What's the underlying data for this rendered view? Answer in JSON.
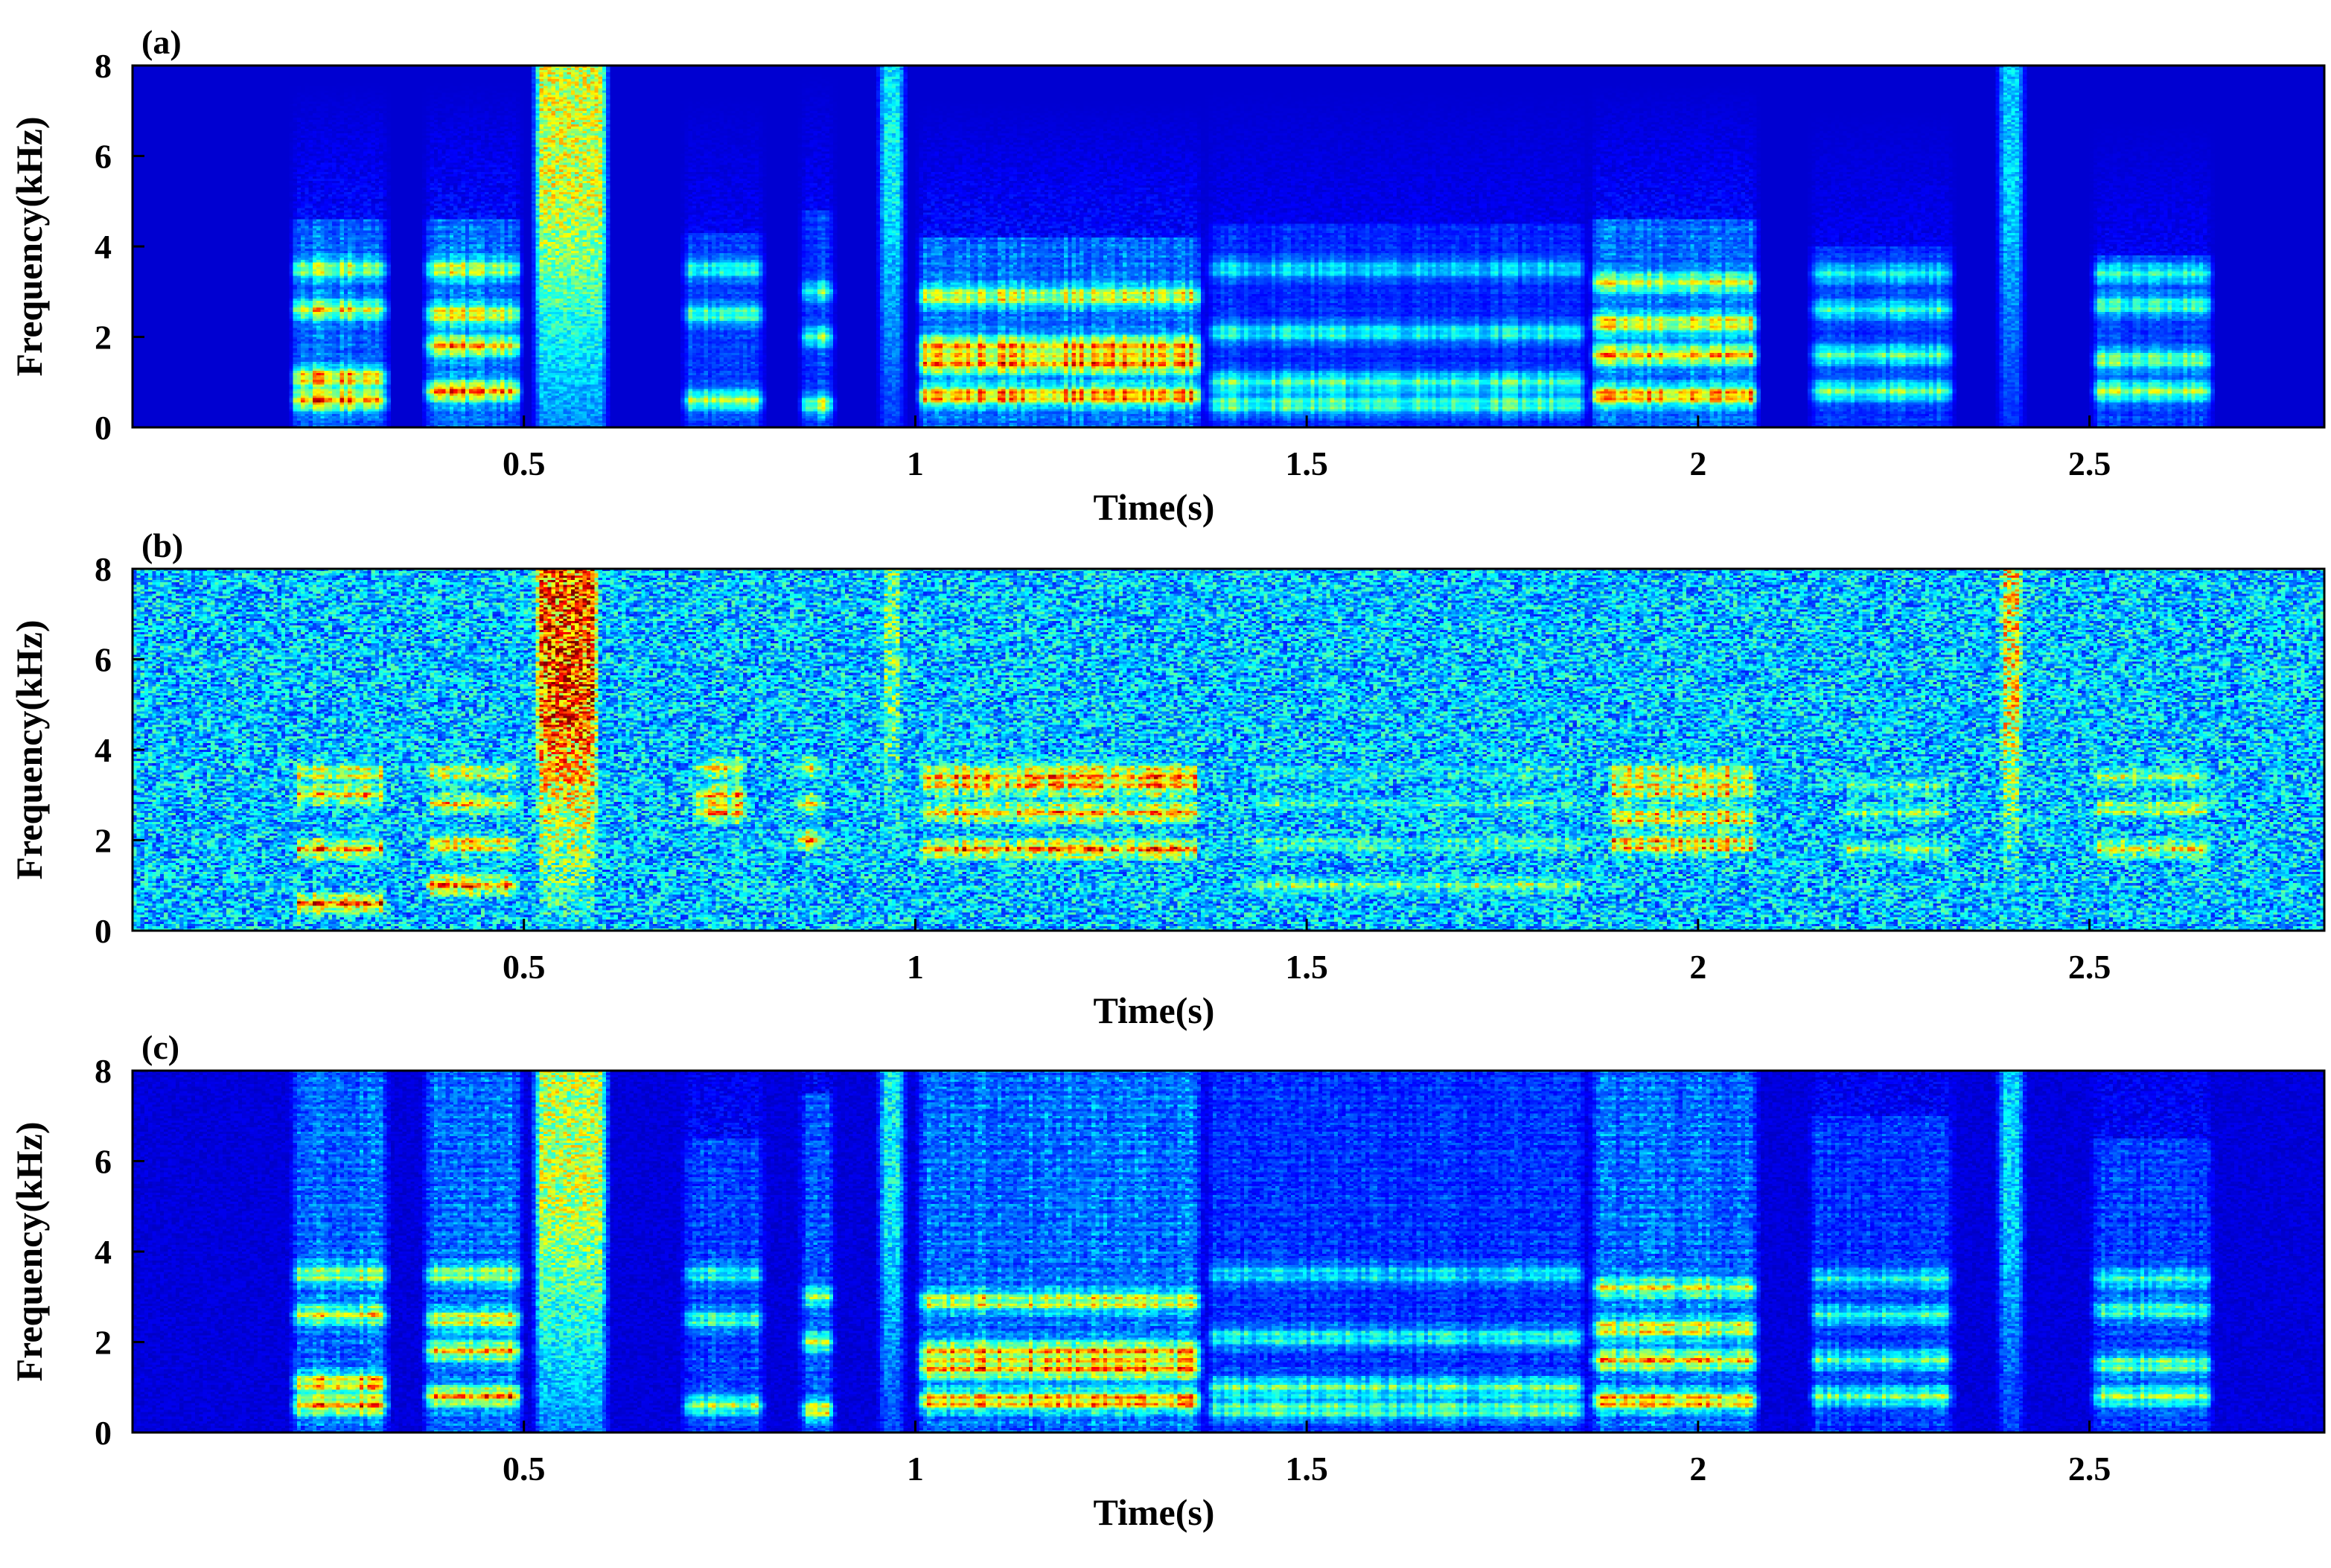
{
  "chart_data": [
    {
      "type": "heatmap",
      "panel_label": "(a)",
      "xlabel": "Time(s)",
      "ylabel": "Frequency(kHz)",
      "xlim": [
        0,
        2.8
      ],
      "ylim": [
        0,
        8
      ],
      "xticks": [
        0.5,
        1,
        1.5,
        2,
        2.5
      ],
      "xtick_labels": [
        "0.5",
        "1",
        "1.5",
        "2",
        "2.5"
      ],
      "yticks": [
        0,
        2,
        4,
        6,
        8
      ],
      "ytick_labels": [
        "0",
        "2",
        "4",
        "6",
        "8"
      ],
      "colormap": "jet",
      "background_level": 0.0,
      "noise_level": 0.0,
      "texture": 0.25,
      "segments": [
        {
          "t0": 0.2,
          "t1": 0.33,
          "fmax": 4.6,
          "strength": 0.85,
          "formants": [
            0.6,
            1.1,
            2.6,
            3.5
          ],
          "sibilant": false
        },
        {
          "t0": 0.37,
          "t1": 0.5,
          "fmax": 4.6,
          "strength": 0.9,
          "formants": [
            0.8,
            1.8,
            2.5,
            3.5
          ],
          "sibilant": false
        },
        {
          "t0": 0.51,
          "t1": 0.61,
          "fmax": 8.0,
          "strength": 0.7,
          "formants": [],
          "sibilant": true
        },
        {
          "t0": 0.7,
          "t1": 0.81,
          "fmax": 4.3,
          "strength": 0.6,
          "formants": [
            0.6,
            2.5,
            3.5
          ],
          "sibilant": false
        },
        {
          "t0": 0.85,
          "t1": 0.9,
          "fmax": 4.8,
          "strength": 0.65,
          "formants": [
            0.5,
            2.0,
            3.0
          ],
          "sibilant": false
        },
        {
          "t0": 0.95,
          "t1": 0.99,
          "fmax": 5.0,
          "strength": 0.4,
          "formants": [],
          "sibilant": true
        },
        {
          "t0": 1.0,
          "t1": 1.37,
          "fmax": 4.2,
          "strength": 0.9,
          "formants": [
            0.7,
            1.4,
            1.8,
            2.9
          ],
          "sibilant": false
        },
        {
          "t0": 1.37,
          "t1": 1.86,
          "fmax": 4.5,
          "strength": 0.5,
          "formants": [
            0.5,
            1.0,
            2.1,
            3.5
          ],
          "sibilant": false
        },
        {
          "t0": 1.86,
          "t1": 2.08,
          "fmax": 4.6,
          "strength": 0.85,
          "formants": [
            0.7,
            1.6,
            2.3,
            3.2
          ],
          "sibilant": false
        },
        {
          "t0": 2.14,
          "t1": 2.33,
          "fmax": 4.0,
          "strength": 0.55,
          "formants": [
            0.8,
            1.6,
            2.6,
            3.4
          ],
          "sibilant": false
        },
        {
          "t0": 2.38,
          "t1": 2.42,
          "fmax": 8.0,
          "strength": 0.35,
          "formants": [],
          "sibilant": true
        },
        {
          "t0": 2.5,
          "t1": 2.66,
          "fmax": 3.8,
          "strength": 0.6,
          "formants": [
            0.8,
            1.5,
            2.7,
            3.4
          ],
          "sibilant": false
        }
      ]
    },
    {
      "type": "heatmap",
      "panel_label": "(b)",
      "xlabel": "Time(s)",
      "ylabel": "Frequency(kHz)",
      "xlim": [
        0,
        2.8
      ],
      "ylim": [
        0,
        8
      ],
      "xticks": [
        0.5,
        1,
        1.5,
        2,
        2.5
      ],
      "xtick_labels": [
        "0.5",
        "1",
        "1.5",
        "2",
        "2.5"
      ],
      "yticks": [
        0,
        2,
        4,
        6,
        8
      ],
      "ytick_labels": [
        "0",
        "2",
        "4",
        "6",
        "8"
      ],
      "colormap": "jet",
      "background_level": 0.22,
      "noise_level": 0.18,
      "texture": 0.3,
      "segments": [
        {
          "t0": 0.2,
          "t1": 0.33,
          "fmax": 4.5,
          "strength": 0.85,
          "formants": [
            0.6,
            1.8,
            3.0,
            3.5
          ],
          "sibilant": false
        },
        {
          "t0": 0.37,
          "t1": 0.5,
          "fmax": 4.6,
          "strength": 0.9,
          "formants": [
            1.0,
            1.9,
            2.8,
            3.5
          ],
          "sibilant": false
        },
        {
          "t0": 0.51,
          "t1": 0.6,
          "fmax": 8.0,
          "strength": 0.95,
          "formants": [],
          "sibilant": true
        },
        {
          "t0": 0.71,
          "t1": 0.79,
          "fmax": 4.0,
          "strength": 0.85,
          "formants": [
            2.6,
            3.0,
            3.6
          ],
          "sibilant": false
        },
        {
          "t0": 0.84,
          "t1": 0.89,
          "fmax": 4.2,
          "strength": 0.8,
          "formants": [
            2.0,
            2.8,
            3.6
          ],
          "sibilant": false
        },
        {
          "t0": 0.95,
          "t1": 0.99,
          "fmax": 5.0,
          "strength": 0.5,
          "formants": [
            2.8
          ],
          "sibilant": true
        },
        {
          "t0": 1.0,
          "t1": 1.37,
          "fmax": 4.0,
          "strength": 0.9,
          "formants": [
            1.8,
            2.6,
            3.2,
            3.5
          ],
          "sibilant": false
        },
        {
          "t0": 1.42,
          "t1": 1.86,
          "fmax": 4.0,
          "strength": 0.5,
          "formants": [
            1.0,
            1.9,
            2.8,
            3.5
          ],
          "sibilant": false
        },
        {
          "t0": 1.88,
          "t1": 2.08,
          "fmax": 4.0,
          "strength": 0.9,
          "formants": [
            1.9,
            2.5,
            3.1,
            3.5
          ],
          "sibilant": false
        },
        {
          "t0": 2.18,
          "t1": 2.33,
          "fmax": 3.8,
          "strength": 0.6,
          "formants": [
            1.8,
            2.6,
            3.2
          ],
          "sibilant": false
        },
        {
          "t0": 2.38,
          "t1": 2.42,
          "fmax": 8.0,
          "strength": 0.7,
          "formants": [],
          "sibilant": true
        },
        {
          "t0": 2.5,
          "t1": 2.66,
          "fmax": 4.0,
          "strength": 0.7,
          "formants": [
            1.8,
            2.7,
            3.4
          ],
          "sibilant": false
        }
      ]
    },
    {
      "type": "heatmap",
      "panel_label": "(c)",
      "xlabel": "Time(s)",
      "ylabel": "Frequency(kHz)",
      "xlim": [
        0,
        2.8
      ],
      "ylim": [
        0,
        8
      ],
      "xticks": [
        0.5,
        1,
        1.5,
        2,
        2.5
      ],
      "xtick_labels": [
        "0.5",
        "1",
        "1.5",
        "2",
        "2.5"
      ],
      "yticks": [
        0,
        2,
        4,
        6,
        8
      ],
      "ytick_labels": [
        "0",
        "2",
        "4",
        "6",
        "8"
      ],
      "colormap": "jet",
      "background_level": 0.0,
      "noise_level": 0.05,
      "texture": 0.35,
      "segments": [
        {
          "t0": 0.2,
          "t1": 0.33,
          "fmax": 8.0,
          "strength": 0.85,
          "formants": [
            0.6,
            1.1,
            2.6,
            3.5
          ],
          "sibilant": false
        },
        {
          "t0": 0.37,
          "t1": 0.5,
          "fmax": 8.0,
          "strength": 0.9,
          "formants": [
            0.8,
            1.8,
            2.5,
            3.5
          ],
          "sibilant": false
        },
        {
          "t0": 0.51,
          "t1": 0.61,
          "fmax": 8.0,
          "strength": 0.65,
          "formants": [],
          "sibilant": true
        },
        {
          "t0": 0.7,
          "t1": 0.81,
          "fmax": 6.5,
          "strength": 0.6,
          "formants": [
            0.6,
            2.5,
            3.5
          ],
          "sibilant": false
        },
        {
          "t0": 0.85,
          "t1": 0.9,
          "fmax": 7.5,
          "strength": 0.65,
          "formants": [
            0.5,
            2.0,
            3.0
          ],
          "sibilant": false
        },
        {
          "t0": 0.95,
          "t1": 0.99,
          "fmax": 6.0,
          "strength": 0.4,
          "formants": [],
          "sibilant": true
        },
        {
          "t0": 1.0,
          "t1": 1.37,
          "fmax": 8.0,
          "strength": 0.9,
          "formants": [
            0.7,
            1.4,
            1.8,
            2.9
          ],
          "sibilant": false
        },
        {
          "t0": 1.37,
          "t1": 1.86,
          "fmax": 8.0,
          "strength": 0.5,
          "formants": [
            0.5,
            1.0,
            2.1,
            3.5
          ],
          "sibilant": false
        },
        {
          "t0": 1.86,
          "t1": 2.08,
          "fmax": 8.0,
          "strength": 0.85,
          "formants": [
            0.7,
            1.6,
            2.3,
            3.2
          ],
          "sibilant": false
        },
        {
          "t0": 2.14,
          "t1": 2.33,
          "fmax": 7.0,
          "strength": 0.55,
          "formants": [
            0.8,
            1.6,
            2.6,
            3.4
          ],
          "sibilant": false
        },
        {
          "t0": 2.38,
          "t1": 2.42,
          "fmax": 8.0,
          "strength": 0.35,
          "formants": [],
          "sibilant": true
        },
        {
          "t0": 2.5,
          "t1": 2.66,
          "fmax": 6.5,
          "strength": 0.6,
          "formants": [
            0.8,
            1.5,
            2.7,
            3.4
          ],
          "sibilant": false
        }
      ]
    }
  ]
}
